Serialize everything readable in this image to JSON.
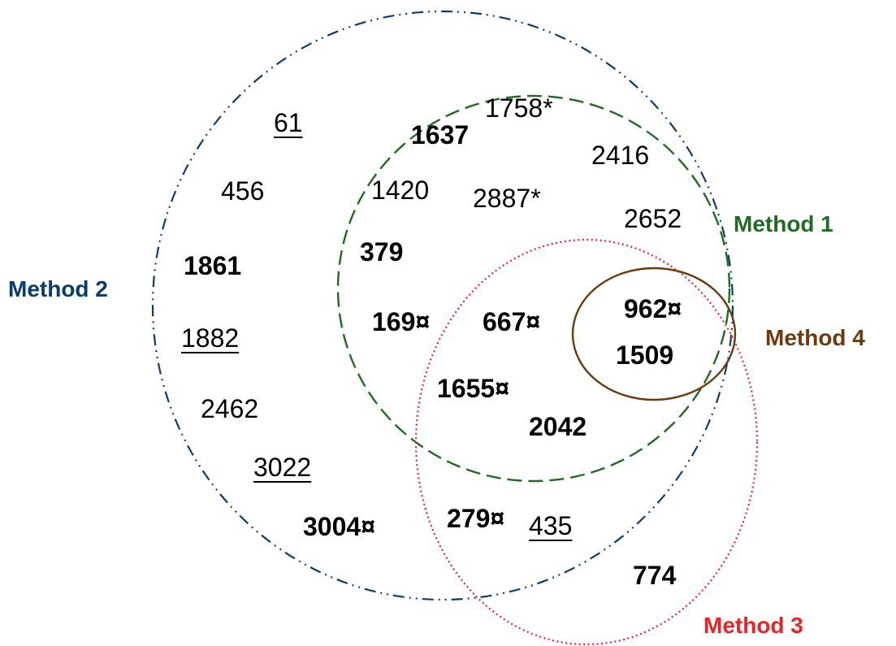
{
  "colors": {
    "method1": "#1f6b1f",
    "method2": "#0d3c6b",
    "method3": "#e8242a",
    "method4": "#6b3a0f",
    "text": "#000000"
  },
  "method_labels": {
    "method1": "Method 1",
    "method2": "Method 2",
    "method3": "Method 3",
    "method4": "Method 4"
  },
  "items": [
    {
      "text": "61",
      "style": "underline"
    },
    {
      "text": "1758*",
      "style": "normal"
    },
    {
      "text": "1637",
      "style": "bold"
    },
    {
      "text": "2416",
      "style": "normal"
    },
    {
      "text": "456",
      "style": "normal"
    },
    {
      "text": "1420",
      "style": "normal"
    },
    {
      "text": "2887*",
      "style": "normal"
    },
    {
      "text": "2652",
      "style": "normal"
    },
    {
      "text": "1861",
      "style": "bold"
    },
    {
      "text": "379",
      "style": "bold"
    },
    {
      "text": "962¤",
      "style": "bold"
    },
    {
      "text": "169¤",
      "style": "bold"
    },
    {
      "text": "667¤",
      "style": "bold"
    },
    {
      "text": "1882",
      "style": "underline"
    },
    {
      "text": "1509",
      "style": "bold"
    },
    {
      "text": "1655¤",
      "style": "bold"
    },
    {
      "text": "2462",
      "style": "normal"
    },
    {
      "text": "2042",
      "style": "bold"
    },
    {
      "text": "3022",
      "style": "underline"
    },
    {
      "text": "3004¤",
      "style": "bold"
    },
    {
      "text": "279¤",
      "style": "bold"
    },
    {
      "text": "435",
      "style": "underline"
    },
    {
      "text": "774",
      "style": "bold"
    }
  ]
}
